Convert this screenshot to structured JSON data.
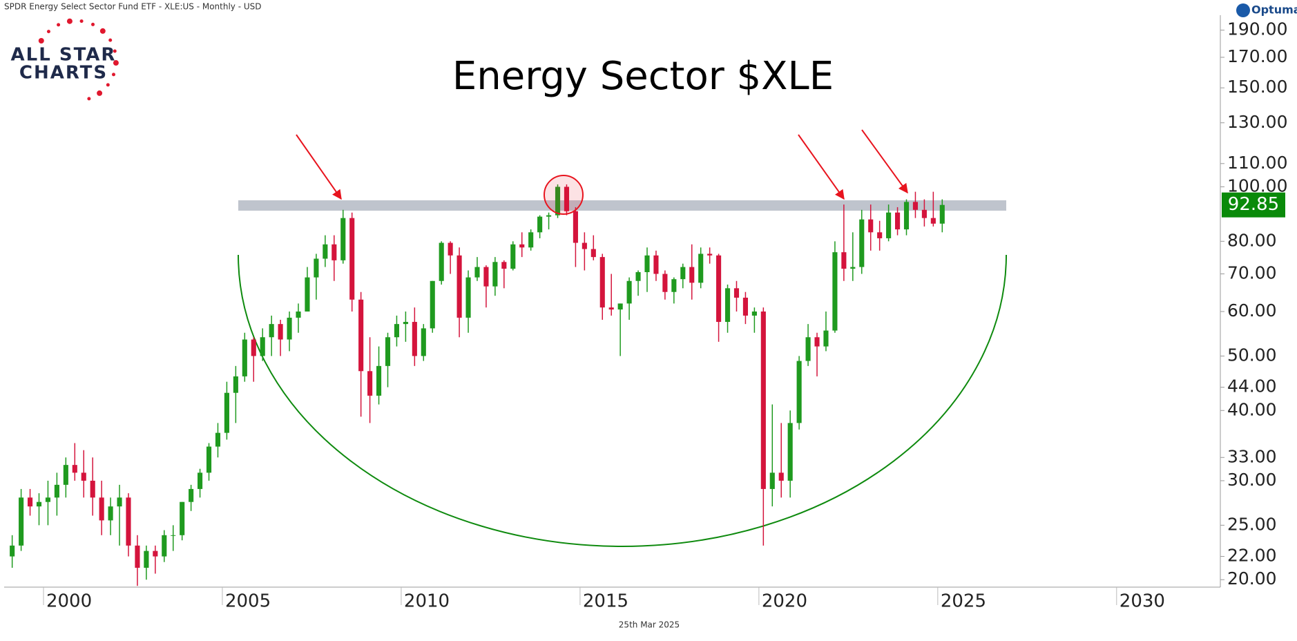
{
  "chart_data": {
    "type": "candlestick",
    "header": "SPDR Energy Select Sector Fund ETF - XLE:US - Monthly - USD",
    "title": "Energy Sector $XLE",
    "logo_line1": "ALL STAR",
    "logo_line2": "CHARTS",
    "brand": "Optuma",
    "date_label": "25th Mar 2025",
    "up_color": "#1f9a1f",
    "down_color": "#d4143c",
    "log_y": true,
    "xlim": [
      1998.9,
      2032.9
    ],
    "xticks": [
      2000,
      2005,
      2010,
      2015,
      2020,
      2025,
      2030
    ],
    "ylim": [
      19.4,
      202
    ],
    "yticks": [
      {
        "value": 20,
        "label": "20.00"
      },
      {
        "value": 22,
        "label": "22.00"
      },
      {
        "value": 25,
        "label": "25.00"
      },
      {
        "value": 30,
        "label": "30.00"
      },
      {
        "value": 33,
        "label": "33.00"
      },
      {
        "value": 40,
        "label": "40.00"
      },
      {
        "value": 44,
        "label": "44.00"
      },
      {
        "value": 50,
        "label": "50.00"
      },
      {
        "value": 60,
        "label": "60.00"
      },
      {
        "value": 70,
        "label": "70.00"
      },
      {
        "value": 80,
        "label": "80.00"
      },
      {
        "value": 100,
        "label": "100.00"
      },
      {
        "value": 110,
        "label": "110.00"
      },
      {
        "value": 130,
        "label": "130.00"
      },
      {
        "value": 150,
        "label": "150.00"
      },
      {
        "value": 170,
        "label": "170.00"
      },
      {
        "value": 190,
        "label": "190.00"
      }
    ],
    "last_price": 92.85,
    "last_price_color": "#0a8a0a",
    "x": [
      1999.125,
      1999.375,
      1999.625,
      1999.875,
      2000.125,
      2000.375,
      2000.625,
      2000.875,
      2001.125,
      2001.375,
      2001.625,
      2001.875,
      2002.125,
      2002.375,
      2002.625,
      2002.875,
      2003.125,
      2003.375,
      2003.625,
      2003.875,
      2004.125,
      2004.375,
      2004.625,
      2004.875,
      2005.125,
      2005.375,
      2005.625,
      2005.875,
      2006.125,
      2006.375,
      2006.625,
      2006.875,
      2007.125,
      2007.375,
      2007.625,
      2007.875,
      2008.125,
      2008.375,
      2008.625,
      2008.875,
      2009.125,
      2009.375,
      2009.625,
      2009.875,
      2010.125,
      2010.375,
      2010.625,
      2010.875,
      2011.125,
      2011.375,
      2011.625,
      2011.875,
      2012.125,
      2012.375,
      2012.625,
      2012.875,
      2013.125,
      2013.375,
      2013.625,
      2013.875,
      2014.125,
      2014.375,
      2014.625,
      2014.875,
      2015.125,
      2015.375,
      2015.625,
      2015.875,
      2016.125,
      2016.375,
      2016.625,
      2016.875,
      2017.125,
      2017.375,
      2017.625,
      2017.875,
      2018.125,
      2018.375,
      2018.625,
      2018.875,
      2019.125,
      2019.375,
      2019.625,
      2019.875,
      2020.125,
      2020.375,
      2020.625,
      2020.875,
      2021.125,
      2021.375,
      2021.625,
      2021.875,
      2022.125,
      2022.375,
      2022.625,
      2022.875,
      2023.125,
      2023.375,
      2023.625,
      2023.875,
      2024.125,
      2024.375,
      2024.625,
      2024.875,
      2025.125
    ],
    "open": [
      22,
      23,
      28,
      27,
      27.5,
      28,
      29.5,
      32,
      31,
      30,
      28,
      25.5,
      27,
      28,
      23,
      21,
      22.5,
      22,
      24,
      24,
      27.5,
      29,
      31,
      34.5,
      36.5,
      43,
      46,
      53.5,
      50,
      54,
      57,
      53.5,
      58.5,
      60,
      69,
      74.5,
      79,
      74,
      88,
      63,
      47,
      42.5,
      48,
      54,
      57,
      57.5,
      50,
      56,
      68,
      79.5,
      75.5,
      58.5,
      69,
      72,
      66.5,
      73.5,
      71.5,
      79,
      78,
      83,
      88.5,
      89,
      100,
      90.5,
      79.5,
      77.5,
      75,
      61,
      60.5,
      62,
      68,
      70.5,
      75.5,
      70,
      65,
      68.5,
      72,
      67.5,
      76,
      75.5,
      57.5,
      66,
      63.5,
      59,
      60,
      29,
      31,
      30,
      38,
      49,
      54,
      52,
      55.5,
      76.5,
      71.5,
      72,
      87.5,
      83,
      81,
      90,
      84,
      94,
      91,
      88,
      86
    ],
    "high": [
      24,
      29,
      29,
      28.5,
      30,
      31,
      33,
      35,
      34,
      33,
      30,
      28,
      29.5,
      28.5,
      24,
      23,
      23,
      24.5,
      25,
      27.5,
      29.5,
      31.5,
      35,
      38,
      45,
      48,
      55,
      54,
      56,
      59,
      58,
      60,
      62,
      72,
      76,
      82,
      82,
      91,
      90,
      65,
      54,
      52,
      55,
      59,
      60,
      61,
      57,
      68,
      80,
      80,
      78,
      71,
      75,
      72.5,
      75,
      74,
      80,
      83,
      84,
      89,
      90,
      101,
      101,
      92,
      83,
      82,
      76,
      70,
      62,
      69,
      71,
      78,
      77,
      71,
      69,
      73,
      79,
      78,
      78,
      76,
      67,
      68,
      65,
      61,
      61,
      41,
      38,
      40,
      50,
      57,
      55,
      60,
      80,
      93,
      83,
      91,
      93,
      87,
      93,
      92,
      95,
      98,
      95,
      98,
      95
    ],
    "low": [
      21,
      22.5,
      26,
      25,
      25,
      26,
      28,
      30,
      28,
      26,
      24,
      24,
      23,
      22,
      19.5,
      20,
      20.5,
      21.5,
      22.5,
      23.5,
      26.5,
      28,
      30,
      33,
      35.5,
      38,
      45,
      45,
      49,
      50,
      50,
      51,
      55,
      60,
      63,
      72,
      68,
      73,
      60,
      39,
      38,
      41,
      44,
      52,
      53,
      48,
      49,
      55,
      67,
      70,
      54,
      55,
      68,
      61,
      64,
      66,
      71,
      75,
      77,
      81,
      84,
      88,
      89,
      72,
      71,
      74,
      58,
      59,
      50,
      58,
      64,
      65,
      68,
      63,
      62,
      66,
      63,
      66,
      73,
      53,
      55,
      60,
      57,
      55,
      23,
      27,
      28,
      28,
      37,
      48,
      46,
      51,
      55,
      68,
      68,
      70,
      77,
      77,
      80,
      82,
      82,
      88,
      85,
      85,
      83
    ],
    "close": [
      23,
      28,
      27,
      27.5,
      28,
      29.5,
      32,
      31,
      30,
      28,
      25.5,
      27,
      28,
      23,
      21,
      22.5,
      22,
      24,
      24,
      27.5,
      29,
      31,
      34.5,
      36.5,
      43,
      46,
      53.5,
      50,
      54,
      57,
      53.5,
      58.5,
      60,
      69,
      74.5,
      79,
      74,
      88,
      63,
      47,
      42.5,
      48,
      54,
      57,
      57.5,
      50,
      56,
      68,
      79.5,
      75.5,
      58.5,
      69,
      72,
      66.5,
      73.5,
      71.5,
      79,
      78,
      83,
      88.5,
      89,
      100,
      90.5,
      79.5,
      77.5,
      75,
      61,
      60.5,
      62,
      68,
      70.5,
      75.5,
      70,
      65,
      68.5,
      72,
      67.5,
      76,
      75.5,
      57.5,
      66,
      63.5,
      59,
      60,
      29,
      31,
      30,
      38,
      49,
      54,
      52,
      55.5,
      76.5,
      71.5,
      72,
      87.5,
      83,
      81,
      90,
      84,
      94,
      91,
      88,
      86,
      92.85
    ]
  }
}
